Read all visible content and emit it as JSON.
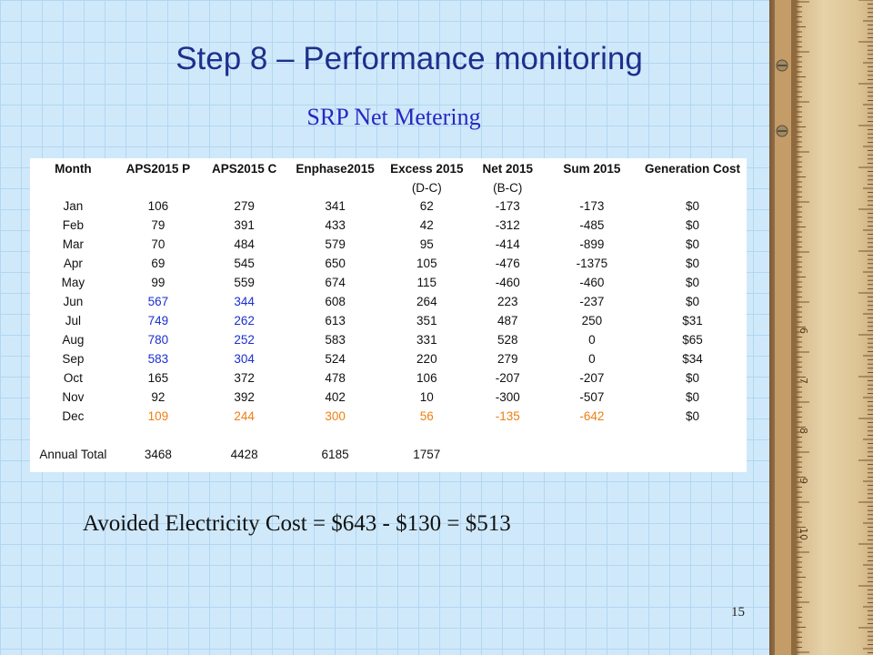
{
  "slide": {
    "title": "Step 8 – Performance monitoring",
    "subtitle": "SRP Net Metering",
    "avoided_cost": "Avoided Electricity Cost =  $643 - $130 = $513",
    "page_number": "15"
  },
  "table": {
    "headers": [
      "Month",
      "APS2015 P",
      "APS2015 C",
      "Enphase2015",
      "Excess 2015",
      "Net 2015",
      "Sum 2015",
      "Generation Cost"
    ],
    "subheaders": [
      "",
      "",
      "",
      "",
      "(D-C)",
      "(B-C)",
      "",
      ""
    ],
    "rows": [
      [
        "Jan",
        "106",
        "279",
        "341",
        "62",
        "-173",
        "-173",
        "$0"
      ],
      [
        "Feb",
        "79",
        "391",
        "433",
        "42",
        "-312",
        "-485",
        "$0"
      ],
      [
        "Mar",
        "70",
        "484",
        "579",
        "95",
        "-414",
        "-899",
        "$0"
      ],
      [
        "Apr",
        "69",
        "545",
        "650",
        "105",
        "-476",
        "-1375",
        "$0"
      ],
      [
        "May",
        "99",
        "559",
        "674",
        "115",
        "-460",
        "-460",
        "$0"
      ],
      [
        "Jun",
        "567",
        "344",
        "608",
        "264",
        "223",
        "-237",
        "$0"
      ],
      [
        "Jul",
        "749",
        "262",
        "613",
        "351",
        "487",
        "250",
        "$31"
      ],
      [
        "Aug",
        "780",
        "252",
        "583",
        "331",
        "528",
        "0",
        "$65"
      ],
      [
        "Sep",
        "583",
        "304",
        "524",
        "220",
        "279",
        "0",
        "$34"
      ],
      [
        "Oct",
        "165",
        "372",
        "478",
        "106",
        "-207",
        "-207",
        "$0"
      ],
      [
        "Nov",
        "92",
        "392",
        "402",
        "10",
        "-300",
        "-507",
        "$0"
      ],
      [
        "Dec",
        "109",
        "244",
        "300",
        "56",
        "-135",
        "-642",
        "$0"
      ]
    ],
    "total": [
      "Annual Total",
      "3468",
      "4428",
      "6185",
      "1757",
      "",
      "",
      ""
    ]
  },
  "colors": {
    "title": "#1f2f8c",
    "subtitle": "#2727c2",
    "summer_highlight": "#1a2fd0",
    "december_highlight": "#ef7f12",
    "background": "#cfe9fb"
  }
}
